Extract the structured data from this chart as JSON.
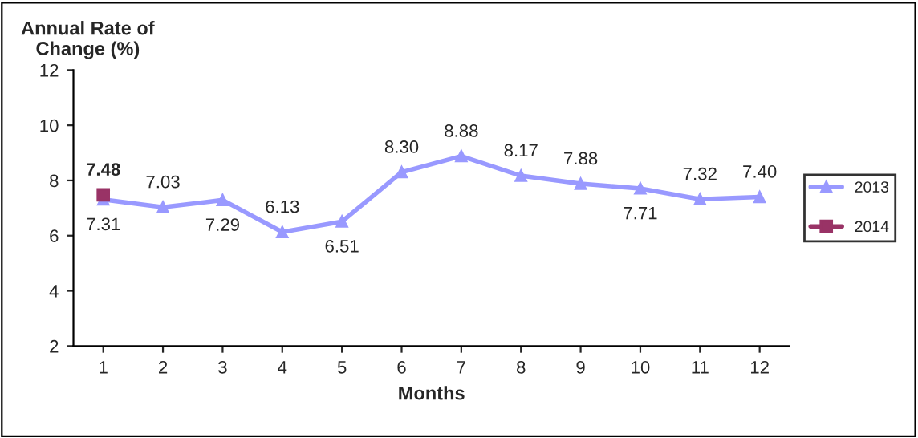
{
  "chart_data": {
    "type": "line",
    "ylabel": "Annual Rate of\nChange (%)",
    "xlabel": "Months",
    "categories": [
      "1",
      "2",
      "3",
      "4",
      "5",
      "6",
      "7",
      "8",
      "9",
      "10",
      "11",
      "12"
    ],
    "series": [
      {
        "name": "2013",
        "color": "#9999ff",
        "marker": "triangle",
        "values": [
          7.31,
          7.03,
          7.29,
          6.13,
          6.51,
          8.3,
          8.88,
          8.17,
          7.88,
          7.71,
          7.32,
          7.4
        ],
        "value_labels": [
          "7.31",
          "7.03",
          "7.29",
          "6.13",
          "6.51",
          "8.30",
          "8.88",
          "8.17",
          "7.88",
          "7.71",
          "7.32",
          "7.40"
        ]
      },
      {
        "name": "2014",
        "color": "#993366",
        "marker": "square",
        "values": [
          7.48,
          null,
          null,
          null,
          null,
          null,
          null,
          null,
          null,
          null,
          null,
          null
        ],
        "value_labels": [
          "7.48",
          null,
          null,
          null,
          null,
          null,
          null,
          null,
          null,
          null,
          null,
          null
        ]
      }
    ],
    "ylim": [
      2,
      12
    ],
    "yticks": [
      2,
      4,
      6,
      8,
      10,
      12
    ],
    "grid": false,
    "legend": "right"
  }
}
